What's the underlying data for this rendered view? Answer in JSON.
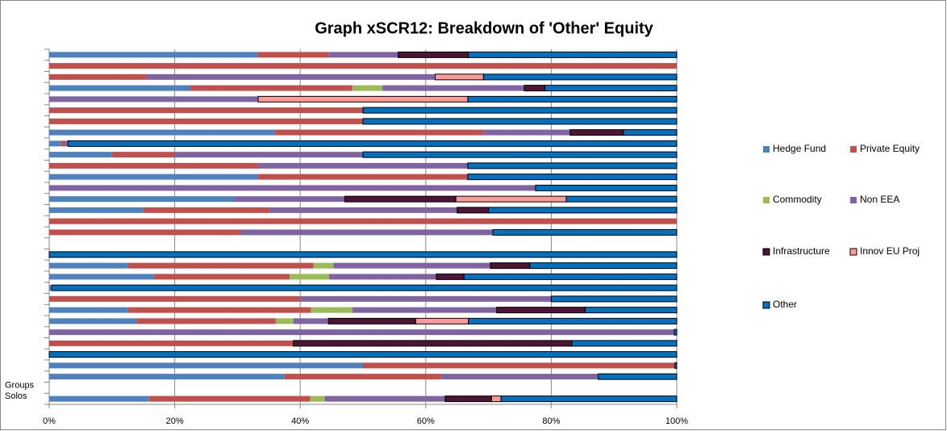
{
  "chart_data": {
    "type": "stacked_bar_horizontal_percent",
    "title": "Graph xSCR12: Breakdown of 'Other' Equity",
    "categories": [
      null,
      null,
      null,
      null,
      null,
      null,
      null,
      null,
      null,
      null,
      null,
      null,
      null,
      null,
      null,
      null,
      null,
      null,
      null,
      null,
      null,
      null,
      null,
      null,
      null,
      null,
      null,
      null,
      null,
      null,
      "Groups",
      "Solos"
    ],
    "series": [
      {
        "name": "Hedge Fund",
        "color": "#4f81bd",
        "values": [
          33.2,
          0,
          0,
          22.5,
          0,
          0,
          0,
          35.9,
          1.9,
          10,
          0,
          33.3,
          0,
          29.5,
          15,
          0,
          0,
          null,
          0,
          12.5,
          16.7,
          0.4,
          0,
          12.5,
          13.9,
          0,
          0,
          0,
          50,
          37.5,
          null,
          15.9
        ]
      },
      {
        "name": "Private Equity",
        "color": "#c0504d",
        "values": [
          11.3,
          100,
          15.5,
          25.8,
          0,
          50,
          50,
          33.3,
          0.6,
          10,
          33.3,
          33.4,
          0,
          0,
          20,
          100,
          30.4,
          null,
          0,
          29.6,
          21.6,
          0,
          40,
          29.2,
          22.2,
          0,
          38.9,
          0,
          49.7,
          25,
          null,
          25.7
        ]
      },
      {
        "name": "Commodity",
        "color": "#9bbb59",
        "values": [
          0,
          0,
          0,
          4.8,
          0,
          0,
          0,
          0,
          0,
          0,
          0,
          0,
          0,
          0,
          0,
          0,
          0,
          null,
          0,
          3.2,
          6.3,
          0,
          0,
          6.6,
          2.8,
          0,
          0,
          0,
          0,
          0,
          null,
          2.3
        ]
      },
      {
        "name": "Non EEA",
        "color": "#8064a2",
        "values": [
          11.1,
          0,
          46,
          22.6,
          33.3,
          0,
          0,
          13.8,
          0.5,
          30,
          33.4,
          0,
          77.5,
          17.6,
          30,
          0,
          40.3,
          null,
          0,
          25,
          17.1,
          0,
          40,
          23,
          5.6,
          99.6,
          0,
          0,
          0,
          25,
          null,
          19.2
        ]
      },
      {
        "name": "Infrastructure",
        "color": "#4d1434",
        "values": [
          11.2,
          0,
          0,
          3.3,
          0,
          0,
          0,
          8.5,
          0,
          0,
          0,
          0,
          0,
          17.7,
          5,
          0,
          0,
          null,
          0,
          6.3,
          4.4,
          0,
          0,
          14.1,
          13.9,
          0,
          44.4,
          0,
          0,
          0,
          null,
          7.4
        ]
      },
      {
        "name": "Innov EU Proj",
        "color": "#ff9a9a",
        "values": [
          0,
          0,
          7.7,
          0,
          33.4,
          0,
          0,
          0,
          0,
          0,
          0,
          0,
          0,
          17.6,
          0,
          0,
          0,
          null,
          0,
          0,
          0,
          0,
          0,
          0,
          8.4,
          0,
          0,
          0,
          0,
          0,
          null,
          1.5
        ]
      },
      {
        "name": "Other",
        "color": "#0070c0",
        "values": [
          33.2,
          0,
          30.8,
          21,
          33.3,
          50,
          50,
          8.5,
          97,
          50,
          33.3,
          33.3,
          22.5,
          17.6,
          30,
          0,
          29.3,
          null,
          100,
          23.4,
          33.9,
          99.6,
          20,
          14.6,
          33.2,
          0.4,
          16.7,
          100,
          0.3,
          12.5,
          null,
          28
        ]
      }
    ],
    "xlim": [
      0,
      100
    ],
    "xticks": [
      {
        "value": 0,
        "label": "0%"
      },
      {
        "value": 20,
        "label": "20%"
      },
      {
        "value": 40,
        "label": "40%"
      },
      {
        "value": 60,
        "label": "60%"
      },
      {
        "value": 80,
        "label": "80%"
      },
      {
        "value": 100,
        "label": "100%"
      }
    ],
    "grid": true,
    "legend": "right"
  }
}
